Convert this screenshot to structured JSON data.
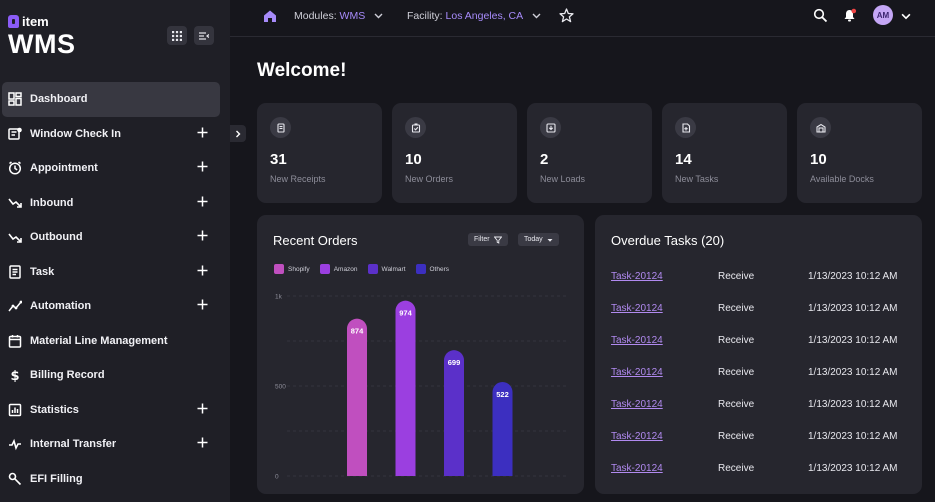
{
  "brand": {
    "small": "item",
    "big": "WMS",
    "accent": "#8b5cf6"
  },
  "sidebar": {
    "items": [
      {
        "label": "Dashboard",
        "icon": "dashboard-icon",
        "expandable": false,
        "active": true
      },
      {
        "label": "Window Check In",
        "icon": "check-in-icon",
        "expandable": true
      },
      {
        "label": "Appointment",
        "icon": "clock-icon",
        "expandable": true
      },
      {
        "label": "Inbound",
        "icon": "inbound-icon",
        "expandable": true
      },
      {
        "label": "Outbound",
        "icon": "outbound-icon",
        "expandable": true
      },
      {
        "label": "Task",
        "icon": "task-icon",
        "expandable": true
      },
      {
        "label": "Automation",
        "icon": "automation-icon",
        "expandable": true
      },
      {
        "label": "Material Line Management",
        "icon": "calendar-icon",
        "expandable": false
      },
      {
        "label": "Billing Record",
        "icon": "dollar-icon",
        "expandable": false
      },
      {
        "label": "Statistics",
        "icon": "statistics-icon",
        "expandable": true
      },
      {
        "label": "Internal Transfer",
        "icon": "transfer-icon",
        "expandable": true
      },
      {
        "label": "EFI Filling",
        "icon": "wrench-icon",
        "expandable": false
      }
    ]
  },
  "topbar": {
    "modules_label": "Modules:",
    "modules_value": "WMS",
    "facility_label": "Facility:",
    "facility_value": "Los Angeles, CA",
    "avatar_initials": "AM"
  },
  "main": {
    "welcome": "Welcome!",
    "stats": [
      {
        "value": "31",
        "label": "New Receipts",
        "icon": "receipt-icon"
      },
      {
        "value": "10",
        "label": "New Orders",
        "icon": "orders-icon"
      },
      {
        "value": "2",
        "label": "New Loads",
        "icon": "loads-icon"
      },
      {
        "value": "14",
        "label": "New Tasks",
        "icon": "tasks-icon"
      },
      {
        "value": "10",
        "label": "Available Docks",
        "icon": "docks-icon"
      }
    ],
    "recent_orders": {
      "title": "Recent Orders",
      "filter_label": "Filter",
      "range_label": "Today"
    },
    "overdue": {
      "title": "Overdue Tasks (20)",
      "rows": [
        {
          "task": "Task-20124",
          "type": "Receive",
          "date": "1/13/2023 10:12 AM"
        },
        {
          "task": "Task-20124",
          "type": "Receive",
          "date": "1/13/2023 10:12 AM"
        },
        {
          "task": "Task-20124",
          "type": "Receive",
          "date": "1/13/2023 10:12 AM"
        },
        {
          "task": "Task-20124",
          "type": "Receive",
          "date": "1/13/2023 10:12 AM"
        },
        {
          "task": "Task-20124",
          "type": "Receive",
          "date": "1/13/2023 10:12 AM"
        },
        {
          "task": "Task-20124",
          "type": "Receive",
          "date": "1/13/2023 10:12 AM"
        },
        {
          "task": "Task-20124",
          "type": "Receive",
          "date": "1/13/2023 10:12 AM"
        }
      ]
    }
  },
  "chart_data": {
    "type": "bar",
    "title": "Recent Orders",
    "categories": [
      "Shopify",
      "Amazon",
      "Walmart",
      "Others"
    ],
    "values": [
      874,
      974,
      699,
      522
    ],
    "colors": [
      "#c04fbf",
      "#9b3fe0",
      "#5b30c9",
      "#3c2fc0"
    ],
    "ylim": [
      0,
      1000
    ],
    "yticks": [
      "0",
      "500",
      "1k"
    ],
    "legend": [
      "Shopify",
      "Amazon",
      "Walmart",
      "Others"
    ]
  }
}
